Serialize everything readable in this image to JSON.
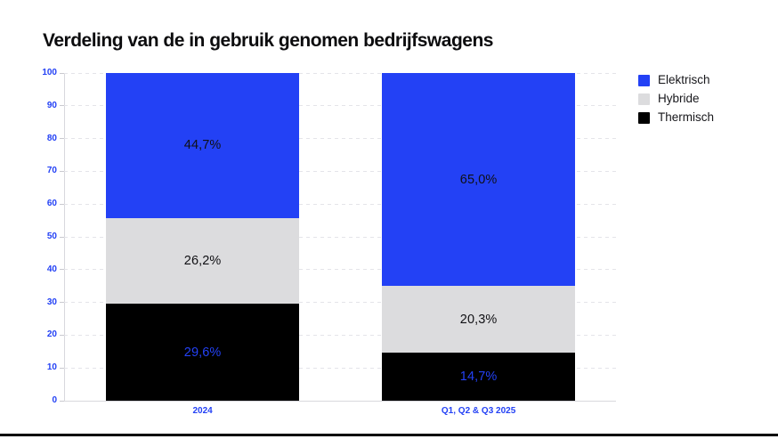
{
  "page": {
    "title": "Verdeling van de in gebruik genomen bedrijfswagens",
    "background": "#ffffff",
    "accent_blue": "#2341f5",
    "bottom_rule_color": "#000000"
  },
  "chart_data": {
    "type": "bar",
    "stacked": true,
    "title": "Verdeling van de in gebruik genomen bedrijfswagens",
    "categories": [
      "2024",
      "Q1, Q2 & Q3 2025"
    ],
    "series": [
      {
        "name": "Elektrisch",
        "color": "#2341f5",
        "label_color": "#101014",
        "values": [
          44.7,
          65.0
        ],
        "value_labels": [
          "44,7%",
          "65,0%"
        ]
      },
      {
        "name": "Hybride",
        "color": "#dcdcde",
        "label_color": "#101014",
        "values": [
          26.2,
          20.3
        ],
        "value_labels": [
          "26,2%",
          "20,3%"
        ]
      },
      {
        "name": "Thermisch",
        "color": "#000000",
        "label_color": "#2341f5",
        "values": [
          29.6,
          14.7
        ],
        "value_labels": [
          "29,6%",
          "14,7%"
        ]
      }
    ],
    "ylim": [
      0,
      100
    ],
    "yticks": [
      0,
      10,
      20,
      30,
      40,
      50,
      60,
      70,
      80,
      90,
      100
    ],
    "grid": "horizontal-dashed",
    "grid_color": "#e4e4e9",
    "axis_color": "#d8d8dd",
    "tick_label_color": "#2341f5",
    "legend_position": "top-right",
    "xlabel": "",
    "ylabel": ""
  }
}
